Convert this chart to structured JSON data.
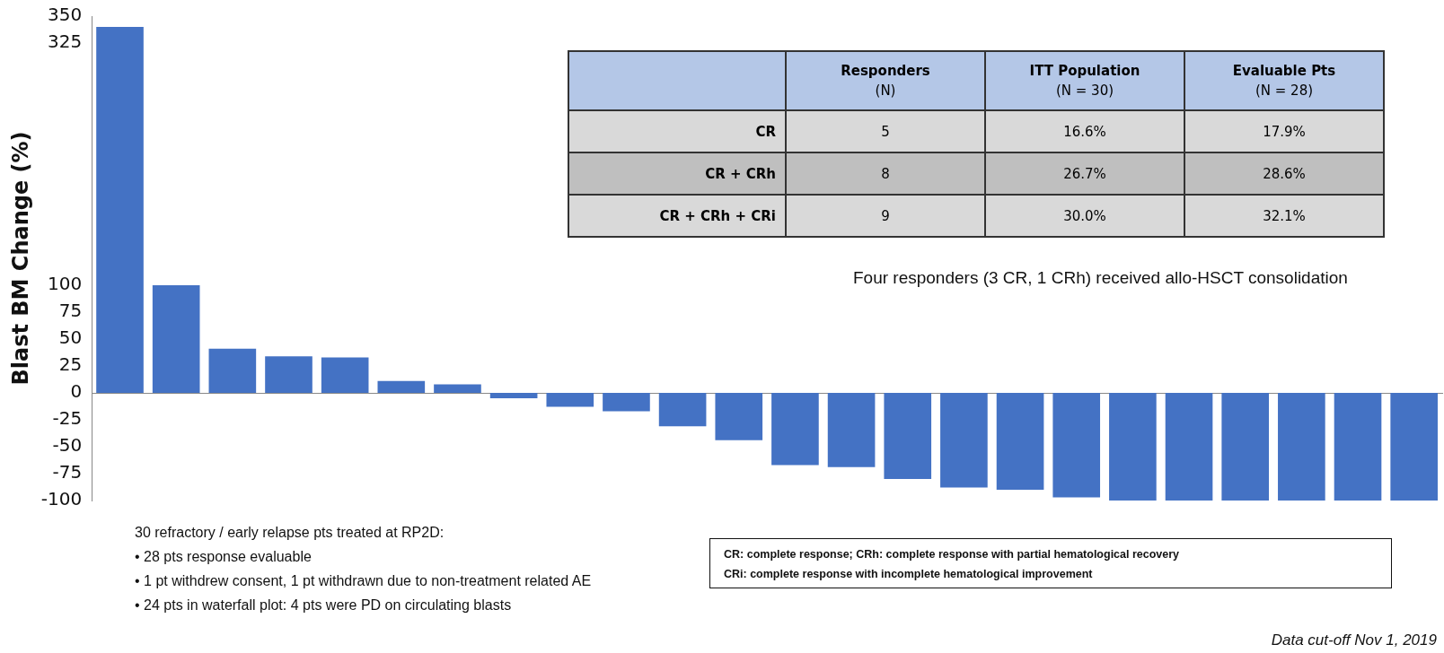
{
  "chart_data": [
    {
      "type": "bar",
      "ylabel": "Blast BM Change (%)",
      "categories": [
        null,
        null,
        null,
        null,
        null,
        null,
        null,
        null,
        null,
        null,
        null,
        null,
        null,
        null,
        null,
        null,
        null,
        null,
        null,
        null,
        null,
        null,
        null,
        null
      ],
      "values": [
        340,
        100,
        41,
        34,
        33,
        11,
        8,
        -5,
        -13,
        -17,
        -31,
        -44,
        -67,
        -69,
        -80,
        -88,
        -90,
        -97,
        -100,
        -100,
        -100,
        -100,
        -100,
        -100
      ],
      "color": "#4472c4",
      "ylim": [
        -100,
        350
      ],
      "yticks": [
        -100,
        -75,
        -50,
        -25,
        0,
        25,
        50,
        75,
        100,
        325,
        350
      ],
      "annotations": [
        "Four responders (3 CR, 1 CRh) received allo-HSCT consolidation",
        "30 refractory / early relapse pts treated at RP2D:",
        "• 28 pts response evaluable",
        "• 1 pt withdrew consent, 1 pt withdrawn due to non-treatment related AE",
        "• 24 pts in waterfall plot: 4 pts were PD on circulating blasts",
        "CR: complete response; CRh: complete response with partial hematological recovery",
        "CRi: complete response with incomplete hematological improvement",
        "Data cut-off Nov 1, 2019"
      ]
    },
    {
      "type": "other",
      "categories": [
        "Responders\n(N)",
        "ITT Population\n(N = 30)",
        "Evaluable Pts\n(N = 28)"
      ],
      "y_categories": [
        "CR",
        "CR + CRh",
        "CR + CRh + CRi"
      ],
      "cell_labels": [
        [
          "5",
          "16.6%",
          "17.9%"
        ],
        [
          "8",
          "26.7%",
          "28.6%"
        ],
        [
          "9",
          "30.0%",
          "32.1%"
        ]
      ]
    }
  ]
}
